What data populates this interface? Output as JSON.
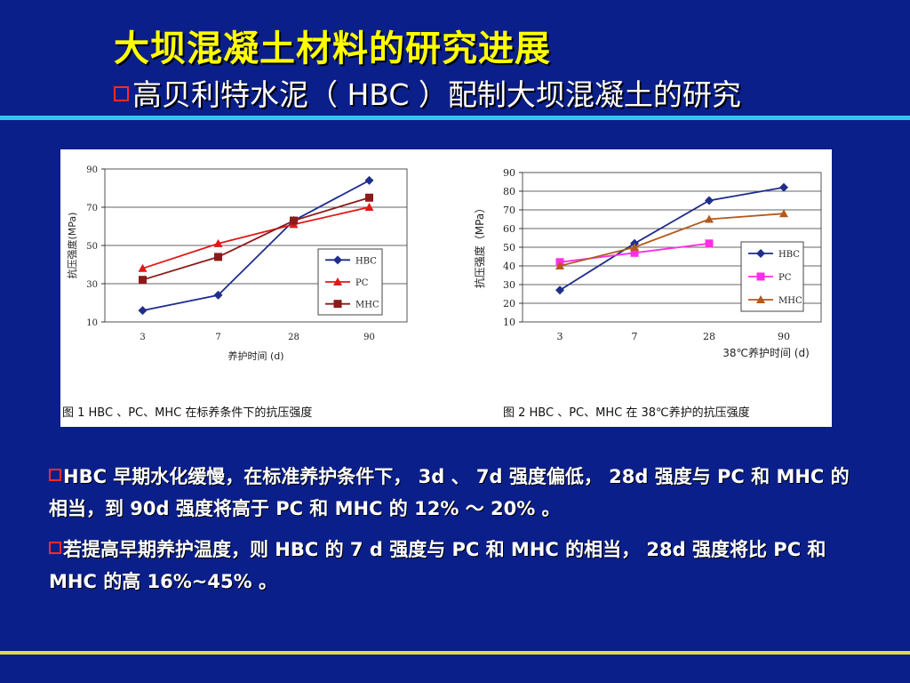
{
  "slide": {
    "title": "大坝混凝土材料的研究进展",
    "subtitle": "高贝利特水泥（ HBC ）配制大坝混凝土的研究",
    "paragraphs": [
      "HBC 早期水化缓慢，在标准养护条件下， 3d 、 7d 强度偏低， 28d 强度与 PC 和 MHC 的相当，到 90d 强度将高于 PC 和 MHC 的 12% ～ 20% 。",
      "若提高早期养护温度，则 HBC 的 7 d 强度与 PC 和 MHC 的相当， 28d 强度将比 PC 和 MHC 的高 16%~45% 。"
    ]
  },
  "colors": {
    "background": "#0b1f8a",
    "title": "#ffff00",
    "top_rule": "#2ec7f0",
    "bottom_rule": "#e8d64a",
    "bullet": "#ff2a2a",
    "hbc": "#1f2d8c",
    "pc_fig1": "#e01818",
    "mhc_fig1": "#8b1a1a",
    "pc_fig2": "#ff2ee6",
    "mhc_fig2": "#b25a1e"
  },
  "chart_data": [
    {
      "type": "line",
      "caption": "图 1 HBC 、PC、MHC 在标养条件下的抗压强度",
      "xlabel": "养护时间  (d)",
      "ylabel": "抗压强度(MPa)",
      "categories": [
        "3",
        "7",
        "28",
        "90"
      ],
      "ylim": [
        10,
        90
      ],
      "yticks": [
        10,
        30,
        50,
        70,
        90
      ],
      "grid": true,
      "legend": "right-middle",
      "series": [
        {
          "name": "HBC",
          "marker": "diamond",
          "values": [
            16,
            24,
            63,
            84
          ]
        },
        {
          "name": "PC",
          "marker": "triangle",
          "values": [
            38,
            51,
            61,
            70
          ]
        },
        {
          "name": "MHC",
          "marker": "square",
          "values": [
            32,
            44,
            63,
            75
          ]
        }
      ]
    },
    {
      "type": "line",
      "caption": "图 2 HBC 、PC、MHC 在 38℃养护的抗压强度",
      "xlabel": "38℃养护时间  (d)",
      "ylabel": "抗压强度（MPa）",
      "categories": [
        "3",
        "7",
        "28",
        "90"
      ],
      "ylim": [
        10,
        90
      ],
      "yticks": [
        10,
        20,
        30,
        40,
        50,
        60,
        70,
        80,
        90
      ],
      "grid": true,
      "legend": "right-middle",
      "series": [
        {
          "name": "HBC",
          "marker": "diamond",
          "values": [
            27,
            52,
            75,
            82
          ]
        },
        {
          "name": "PC",
          "marker": "square",
          "values": [
            42,
            47,
            52,
            null
          ]
        },
        {
          "name": "MHC",
          "marker": "triangle",
          "values": [
            40,
            50,
            65,
            68
          ]
        }
      ]
    }
  ]
}
